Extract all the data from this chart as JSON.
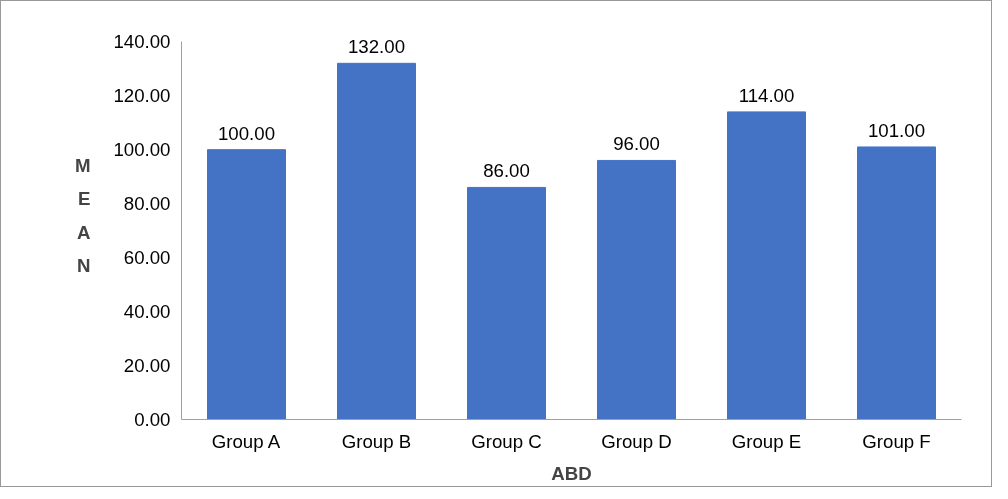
{
  "chart_data": {
    "type": "bar",
    "categories": [
      "Group A",
      "Group B",
      "Group C",
      "Group D",
      "Group E",
      "Group F"
    ],
    "values": [
      100,
      132,
      86,
      96,
      114,
      101
    ],
    "value_labels": [
      "100.00",
      "132.00",
      "86.00",
      "96.00",
      "114.00",
      "101.00"
    ],
    "color": "#4472c4",
    "xlabel": "ABD",
    "ylabel": "MEAN",
    "ylim": [
      0,
      140
    ],
    "yticks": [
      {
        "value": 0,
        "label": "0.00"
      },
      {
        "value": 20,
        "label": "20.00"
      },
      {
        "value": 40,
        "label": "40.00"
      },
      {
        "value": 60,
        "label": "60.00"
      },
      {
        "value": 80,
        "label": "80.00"
      },
      {
        "value": 100,
        "label": "100.00"
      },
      {
        "value": 120,
        "label": "120.00"
      },
      {
        "value": 140,
        "label": "140.00"
      }
    ],
    "grid": false
  }
}
